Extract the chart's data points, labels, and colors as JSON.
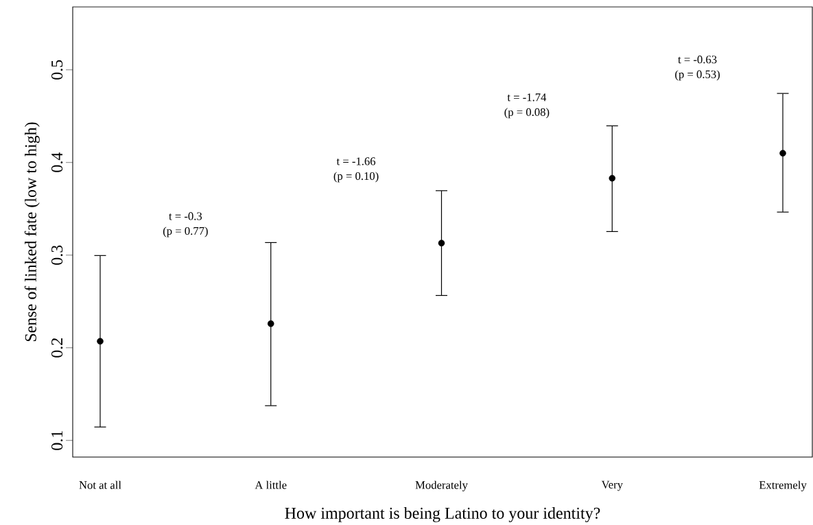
{
  "chart_data": {
    "type": "scatter",
    "xlabel": "How important is being Latino to your identity?",
    "ylabel": "Sense of linked fate (low to high)",
    "categories": [
      "Not at all",
      "A little",
      "Moderately",
      "Very",
      "Extremely"
    ],
    "series": [
      {
        "color": "#000000",
        "values": [
          0.207,
          0.226,
          0.313,
          0.383,
          0.41
        ],
        "errors": [
          [
            0.114,
            0.3
          ],
          [
            0.137,
            0.314
          ],
          [
            0.256,
            0.37
          ],
          [
            0.325,
            0.44
          ],
          [
            0.346,
            0.475
          ]
        ]
      }
    ],
    "marker": "circle",
    "ylim": [
      0.082,
      0.568
    ],
    "yticks": [
      0.1,
      0.2,
      0.3,
      0.4,
      0.5
    ],
    "annotations": [
      "t = -0.3",
      "(p = 0.77)",
      "t = -1.66",
      "(p = 0.10)",
      "t = -1.74",
      "(p = 0.08)",
      "t = -0.63",
      "(p = 0.53)"
    ]
  }
}
